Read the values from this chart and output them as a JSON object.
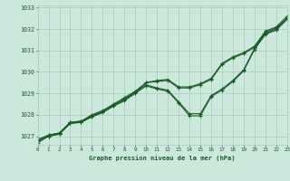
{
  "background_color": "#cce8dc",
  "grid_color": "#aaccbb",
  "line_color": "#1a5c28",
  "text_color": "#1a5c28",
  "xlabel": "Graphe pression niveau de la mer (hPa)",
  "x_ticks": [
    0,
    1,
    2,
    3,
    4,
    5,
    6,
    7,
    8,
    9,
    10,
    11,
    12,
    13,
    14,
    15,
    16,
    17,
    18,
    19,
    20,
    21,
    22,
    23
  ],
  "xlim": [
    0,
    23
  ],
  "ylim": [
    1026.6,
    1033.1
  ],
  "y_ticks": [
    1027,
    1028,
    1029,
    1030,
    1031,
    1032,
    1033
  ],
  "series": [
    [
      1026.7,
      1027.0,
      1027.1,
      1027.6,
      1027.65,
      1027.9,
      1028.1,
      1028.4,
      1028.65,
      1029.0,
      1029.35,
      1029.2,
      1029.1,
      1028.55,
      1027.95,
      1027.95,
      1028.85,
      1029.15,
      1029.55,
      1030.05,
      1031.05,
      1031.75,
      1031.95,
      1032.45
    ],
    [
      1026.75,
      1027.05,
      1027.15,
      1027.65,
      1027.7,
      1027.95,
      1028.15,
      1028.45,
      1028.7,
      1029.05,
      1029.4,
      1029.25,
      1029.15,
      1028.6,
      1028.05,
      1028.05,
      1028.9,
      1029.2,
      1029.6,
      1030.1,
      1031.1,
      1031.8,
      1032.0,
      1032.5
    ],
    [
      1026.8,
      1027.0,
      1027.1,
      1027.6,
      1027.65,
      1027.95,
      1028.15,
      1028.45,
      1028.75,
      1029.05,
      1029.5,
      1029.55,
      1029.6,
      1029.25,
      1029.25,
      1029.4,
      1029.65,
      1030.35,
      1030.65,
      1030.85,
      1031.15,
      1031.85,
      1032.05,
      1032.5
    ],
    [
      1026.85,
      1027.05,
      1027.15,
      1027.65,
      1027.7,
      1028.0,
      1028.2,
      1028.5,
      1028.8,
      1029.1,
      1029.5,
      1029.6,
      1029.65,
      1029.3,
      1029.3,
      1029.45,
      1029.7,
      1030.4,
      1030.7,
      1030.9,
      1031.2,
      1031.9,
      1032.1,
      1032.6
    ]
  ]
}
